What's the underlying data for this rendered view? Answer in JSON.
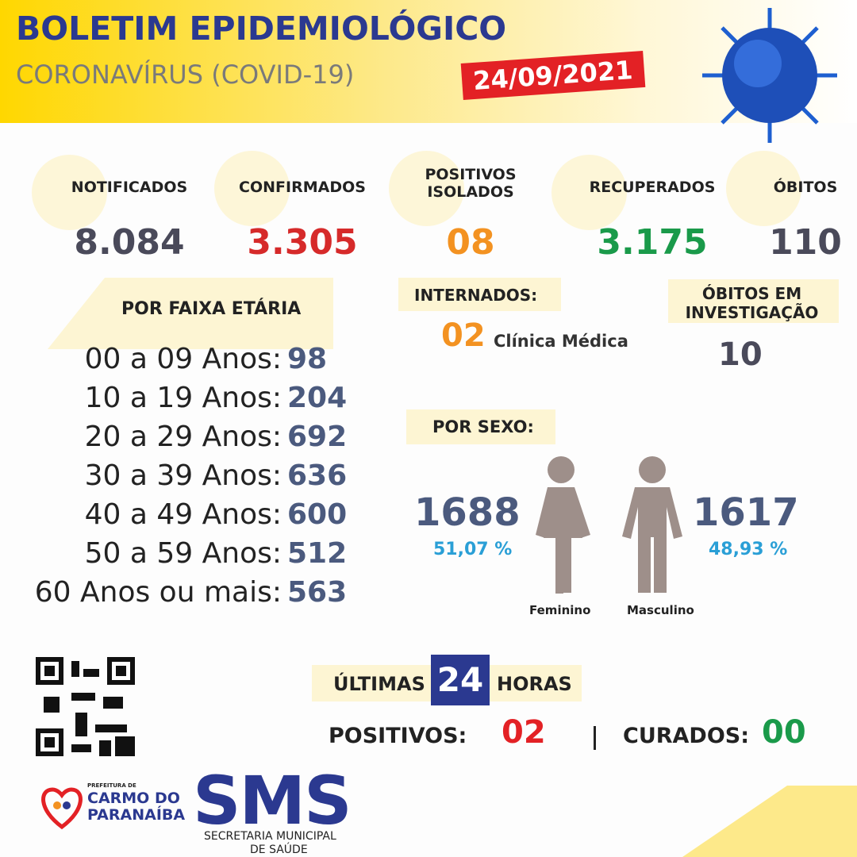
{
  "header": {
    "title": "BOLETIM EPIDEMIOLÓGICO",
    "subtitle": "CORONAVÍRUS (COVID-19)",
    "date": "24/09/2021"
  },
  "stats": [
    {
      "label": "NOTIFICADOS",
      "value": "8.084"
    },
    {
      "label": "CONFIRMADOS",
      "value": "3.305"
    },
    {
      "label": "POSITIVOS ISOLADOS",
      "value": "08"
    },
    {
      "label": "RECUPERADOS",
      "value": "3.175"
    },
    {
      "label": "ÓBITOS",
      "value": "110"
    }
  ],
  "age": {
    "title": "POR FAIXA ETÁRIA",
    "rows": [
      {
        "label": "00 a 09 Anos:",
        "value": "98"
      },
      {
        "label": "10 a 19 Anos:",
        "value": "204"
      },
      {
        "label": "20 a 29 Anos:",
        "value": "692"
      },
      {
        "label": "30 a 39 Anos:",
        "value": "636"
      },
      {
        "label": "40 a 49 Anos:",
        "value": "600"
      },
      {
        "label": "50 a 59 Anos:",
        "value": "512"
      },
      {
        "label": "60 Anos ou mais:",
        "value": "563"
      }
    ]
  },
  "internados": {
    "title": "INTERNADOS:",
    "value": "02",
    "unit": "Clínica Médica"
  },
  "obitos_investigacao": {
    "title": "ÓBITOS EM INVESTIGAÇÃO",
    "value": "10"
  },
  "sexo": {
    "title": "POR SEXO:",
    "female": {
      "count": "1688",
      "percent": "51,07 %",
      "label": "Feminino"
    },
    "male": {
      "count": "1617",
      "percent": "48,93 %",
      "label": "Masculino"
    }
  },
  "last24": {
    "prefix": "ÚLTIMAS",
    "hours": "24",
    "suffix": "HORAS",
    "positivos_label": "POSITIVOS:",
    "positivos": "02",
    "curados_label": "CURADOS:",
    "curados": "00"
  },
  "footer": {
    "prefeitura": "PREFEITURA DE",
    "city_line1": "CARMO DO",
    "city_line2": "PARANAÍBA",
    "sms": "SMS",
    "secretaria_line1": "SECRETARIA MUNICIPAL",
    "secretaria_line2": "DE SAÚDE"
  }
}
